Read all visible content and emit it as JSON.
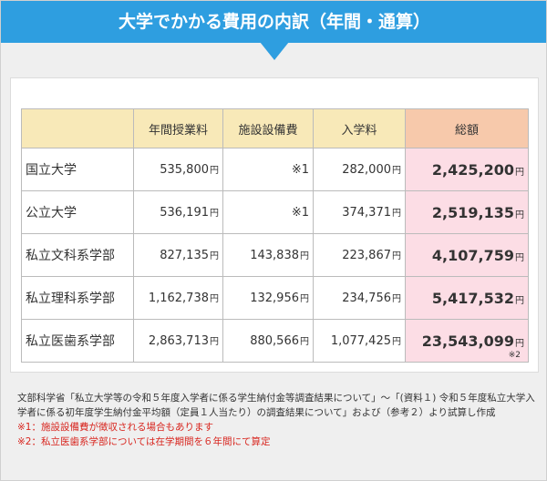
{
  "header": {
    "title": "大学でかかる費用の内訳（年間・通算）"
  },
  "table": {
    "unit": "円",
    "columns": [
      null,
      "年間授業料",
      "施設設備費",
      "入学料",
      "総額"
    ],
    "rows": [
      {
        "cells": [
          "国立大学",
          "535,800",
          "※1",
          "282,000",
          "2,425,200"
        ]
      },
      {
        "cells": [
          "公立大学",
          "536,191",
          "※1",
          "374,371",
          "2,519,135"
        ]
      },
      {
        "cells": [
          "私立文科系学部",
          "827,135",
          "143,838",
          "223,867",
          "4,107,759"
        ]
      },
      {
        "cells": [
          "私立理科系学部",
          "1,162,738",
          "132,956",
          "234,756",
          "5,417,532"
        ]
      },
      {
        "cells": [
          "私立医歯系学部",
          "2,863,713",
          "880,566",
          "1,077,425",
          "23,543,099"
        ],
        "total_note": "※2"
      }
    ]
  },
  "footer": {
    "source": "文部科学省「私立大学等の令和５年度入学者に係る学生納付金等調査結果について」～「(資料１) 令和５年度私立大学入学者に係る初年度学生納付金平均額（定員１人当たり）の調査結果について」および（参考２）より試算し作成",
    "notes": [
      "※1：施設設備費が徴収される場合もあります",
      "※2：私立医歯系学部については在学期間を６年間にて算定"
    ]
  }
}
